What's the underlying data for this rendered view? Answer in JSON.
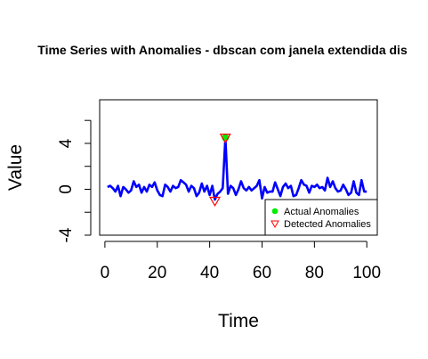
{
  "chart_data": {
    "type": "line",
    "title": "Time Series with Anomalies - dbscan com janela extendida dis",
    "xlabel": "Time",
    "ylabel": "Value",
    "xlim": [
      -2,
      104
    ],
    "ylim": [
      -4,
      7.8
    ],
    "xticks": [
      0,
      20,
      40,
      60,
      80,
      100
    ],
    "yticks": [
      -4,
      0,
      4
    ],
    "yticks_minor": [
      -4,
      -2,
      0,
      2,
      4,
      6
    ],
    "series": [
      {
        "color": "#0000ff",
        "x": [
          1,
          2,
          3,
          4,
          5,
          6,
          7,
          8,
          9,
          10,
          11,
          12,
          13,
          14,
          15,
          16,
          17,
          18,
          19,
          20,
          21,
          22,
          23,
          24,
          25,
          26,
          27,
          28,
          29,
          30,
          31,
          32,
          33,
          34,
          35,
          36,
          37,
          38,
          39,
          40,
          41,
          42,
          43,
          44,
          45,
          46,
          47,
          48,
          49,
          50,
          51,
          52,
          53,
          54,
          55,
          56,
          57,
          58,
          59,
          60,
          61,
          62,
          63,
          64,
          65,
          66,
          67,
          68,
          69,
          70,
          71,
          72,
          73,
          74,
          75,
          76,
          77,
          78,
          79,
          80,
          81,
          82,
          83,
          84,
          85,
          86,
          87,
          88,
          89,
          90,
          91,
          92,
          93,
          94,
          95,
          96,
          97,
          98,
          99,
          100
        ],
        "y": [
          0.2,
          0.3,
          0.1,
          -0.2,
          0.3,
          -0.6,
          0.2,
          0.0,
          -0.3,
          -0.1,
          0.7,
          0.2,
          0.4,
          -0.3,
          0.2,
          -0.2,
          0.4,
          0.2,
          0.6,
          -0.1,
          -0.5,
          -0.6,
          0.4,
          0.2,
          -0.2,
          0.3,
          0.1,
          0.2,
          0.8,
          0.6,
          0.4,
          -0.2,
          0.3,
          0.1,
          -0.6,
          -0.3,
          0.5,
          -0.2,
          0.3,
          -0.5,
          0.3,
          -0.9,
          -0.4,
          -0.2,
          0.1,
          4.5,
          -0.4,
          0.3,
          0.1,
          -0.5,
          0.0,
          0.7,
          0.1,
          -0.1,
          0.2,
          -0.1,
          0.1,
          0.3,
          0.8,
          -0.8,
          0.2,
          -0.3,
          -0.2,
          -0.2,
          0.6,
          0.0,
          -0.6,
          0.2,
          0.5,
          0.1,
          0.3,
          -0.6,
          -0.5,
          0.1,
          0.8,
          0.4,
          0.3,
          -0.3,
          0.3,
          0.2,
          0.4,
          0.1,
          0.2,
          -0.1,
          1.0,
          0.2,
          0.7,
          0.1,
          -0.2,
          -0.1,
          0.4,
          0.0,
          -0.5,
          -0.3,
          0.7,
          -0.3,
          -0.5,
          0.8,
          -0.2,
          -0.2
        ]
      }
    ],
    "actual_anomalies": [
      {
        "x": 46,
        "y": 4.5
      }
    ],
    "detected_anomalies": [
      {
        "x": 42,
        "y": -1.0
      },
      {
        "x": 46,
        "y": 4.5
      }
    ],
    "legend": {
      "position": "bottom-right",
      "items": [
        {
          "label": "Actual Anomalies",
          "symbol": "circle",
          "color": "#00ee00"
        },
        {
          "label": "Detected Anomalies",
          "symbol": "triangle-down",
          "color": "#ff0000"
        }
      ]
    }
  }
}
